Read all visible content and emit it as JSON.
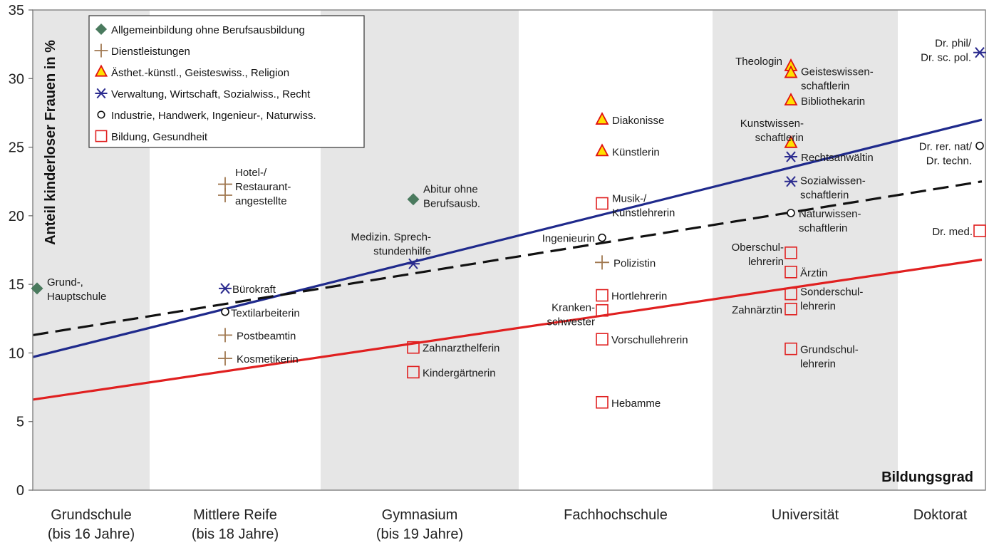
{
  "chart_data": {
    "type": "scatter",
    "ylabel": "Anteil kinderloser Frauen in %",
    "xlabel": "Bildungsgrad",
    "ylim": [
      0,
      35
    ],
    "yticks": [
      0,
      5,
      10,
      15,
      20,
      25,
      30,
      35
    ],
    "categories": [
      {
        "line1": "Grundschule",
        "line2": "(bis 16 Jahre)"
      },
      {
        "line1": "Mittlere Reife",
        "line2": "(bis 18 Jahre)"
      },
      {
        "line1": "Gymnasium",
        "line2": "(bis 19 Jahre)"
      },
      {
        "line1": "Fachhochschule",
        "line2": ""
      },
      {
        "line1": "Universität",
        "line2": ""
      },
      {
        "line1": "Doktorat",
        "line2": ""
      }
    ],
    "legend": [
      {
        "key": "allgemein",
        "label": "Allgemeinbildung ohne Berufsausbildung"
      },
      {
        "key": "dienst",
        "label": "Dienstleistungen"
      },
      {
        "key": "aesthet",
        "label": "Ästhet.-künstl., Geisteswiss., Religion"
      },
      {
        "key": "verwaltung",
        "label": "Verwaltung, Wirtschaft, Sozialwiss., Recht"
      },
      {
        "key": "industrie",
        "label": "Industrie, Handwerk, Ingenieur-, Naturwiss."
      },
      {
        "key": "bildung",
        "label": "Bildung, Gesundheit"
      }
    ],
    "colors": {
      "allgemein": "#4a7a5e",
      "dienst": "#a07850",
      "aesthet_fill": "#ffe000",
      "aesthet_stroke": "#e01010",
      "verwaltung": "#2a2a8e",
      "industrie": "#111111",
      "bildung": "#e02020",
      "trend_blue": "#1f2a8c",
      "trend_red": "#e02020",
      "trend_dash": "#111111",
      "band": "#e6e6e6"
    },
    "points": [
      {
        "cat": 0,
        "y": 14.7,
        "group": "allgemein",
        "label": [
          "Grund-,",
          "Hauptschule"
        ]
      },
      {
        "cat": 1,
        "y": 22.3,
        "group": "dienst",
        "label": []
      },
      {
        "cat": 1,
        "y": 21.5,
        "group": "dienst",
        "label": [
          "Hotel-/",
          "Restaurant-",
          "angestellte"
        ]
      },
      {
        "cat": 1,
        "y": 14.7,
        "group": "verwaltung",
        "label": [
          "Bürokraft"
        ]
      },
      {
        "cat": 1,
        "y": 13.0,
        "group": "industrie",
        "label": [
          "Textilarbeiterin"
        ]
      },
      {
        "cat": 1,
        "y": 11.3,
        "group": "dienst",
        "label": [
          "Postbeamtin"
        ]
      },
      {
        "cat": 1,
        "y": 9.6,
        "group": "dienst",
        "label": [
          "Kosmetikerin"
        ]
      },
      {
        "cat": 2,
        "y": 21.2,
        "group": "allgemein",
        "label": [
          "Abitur ohne",
          "Berufsausb."
        ]
      },
      {
        "cat": 2,
        "y": 16.5,
        "group": "verwaltung",
        "label": [
          "Medizin. Sprech-",
          "stundenhilfe"
        ]
      },
      {
        "cat": 2,
        "y": 10.4,
        "group": "bildung",
        "label": [
          "Zahnarzthelferin"
        ]
      },
      {
        "cat": 2,
        "y": 8.6,
        "group": "bildung",
        "label": [
          "Kindergärtnerin"
        ]
      },
      {
        "cat": 3,
        "y": 27.0,
        "group": "aesthet",
        "label": [
          "Diakonisse"
        ]
      },
      {
        "cat": 3,
        "y": 24.7,
        "group": "aesthet",
        "label": [
          "Künstlerin"
        ]
      },
      {
        "cat": 3,
        "y": 20.9,
        "group": "bildung",
        "label": [
          "Musik-/",
          "Kunstlehrerin"
        ]
      },
      {
        "cat": 3,
        "y": 18.4,
        "group": "industrie",
        "label": [
          "Ingenieurin"
        ]
      },
      {
        "cat": 3,
        "y": 16.6,
        "group": "dienst",
        "label": [
          "Polizistin"
        ]
      },
      {
        "cat": 3,
        "y": 14.2,
        "group": "bildung",
        "label": [
          "Hortlehrerin"
        ]
      },
      {
        "cat": 3,
        "y": 13.1,
        "group": "bildung",
        "label": [
          "Kranken-",
          "schwester"
        ]
      },
      {
        "cat": 3,
        "y": 11.0,
        "group": "bildung",
        "label": [
          "Vorschullehrerin"
        ]
      },
      {
        "cat": 3,
        "y": 6.4,
        "group": "bildung",
        "label": [
          "Hebamme"
        ]
      },
      {
        "cat": 4,
        "y": 30.9,
        "group": "aesthet",
        "label": [
          "Theologin"
        ]
      },
      {
        "cat": 4,
        "y": 30.4,
        "group": "aesthet",
        "label": [
          "Geisteswissen-",
          "schaftlerin"
        ]
      },
      {
        "cat": 4,
        "y": 28.4,
        "group": "aesthet",
        "label": [
          "Bibliothekarin"
        ]
      },
      {
        "cat": 4,
        "y": 25.3,
        "group": "aesthet",
        "label": [
          "Kunstwissen-",
          "schaftlerin"
        ]
      },
      {
        "cat": 4,
        "y": 24.3,
        "group": "verwaltung",
        "label": [
          "Rechtsanwältin"
        ]
      },
      {
        "cat": 4,
        "y": 22.5,
        "group": "verwaltung",
        "label": [
          "Sozialwissen-",
          "schaftlerin"
        ]
      },
      {
        "cat": 4,
        "y": 20.2,
        "group": "industrie",
        "label": [
          "Naturwissen-",
          "schaftlerin"
        ]
      },
      {
        "cat": 4,
        "y": 17.3,
        "group": "bildung",
        "label": [
          "Oberschul-",
          "lehrerin"
        ]
      },
      {
        "cat": 4,
        "y": 15.9,
        "group": "bildung",
        "label": [
          "Ärztin"
        ]
      },
      {
        "cat": 4,
        "y": 14.3,
        "group": "bildung",
        "label": [
          "Sonderschul-",
          "lehrerin"
        ]
      },
      {
        "cat": 4,
        "y": 13.2,
        "group": "bildung",
        "label": [
          "Zahnärztin"
        ]
      },
      {
        "cat": 4,
        "y": 10.3,
        "group": "bildung",
        "label": [
          "Grundschul-",
          "lehrerin"
        ]
      },
      {
        "cat": 5,
        "y": 31.9,
        "group": "verwaltung",
        "label": [
          "Dr. phil/",
          "Dr. sc. pol."
        ]
      },
      {
        "cat": 5,
        "y": 25.1,
        "group": "industrie",
        "label": [
          "Dr. rer. nat/",
          "Dr. techn."
        ]
      },
      {
        "cat": 5,
        "y": 18.9,
        "group": "bildung",
        "label": [
          "Dr. med."
        ]
      }
    ],
    "trendlines": [
      {
        "key": "blue",
        "style": "solid",
        "y_start": 9.7,
        "y_end": 27.0
      },
      {
        "key": "dash",
        "style": "dashed",
        "y_start": 11.3,
        "y_end": 22.5
      },
      {
        "key": "red",
        "style": "solid",
        "y_start": 6.6,
        "y_end": 16.8
      }
    ]
  }
}
